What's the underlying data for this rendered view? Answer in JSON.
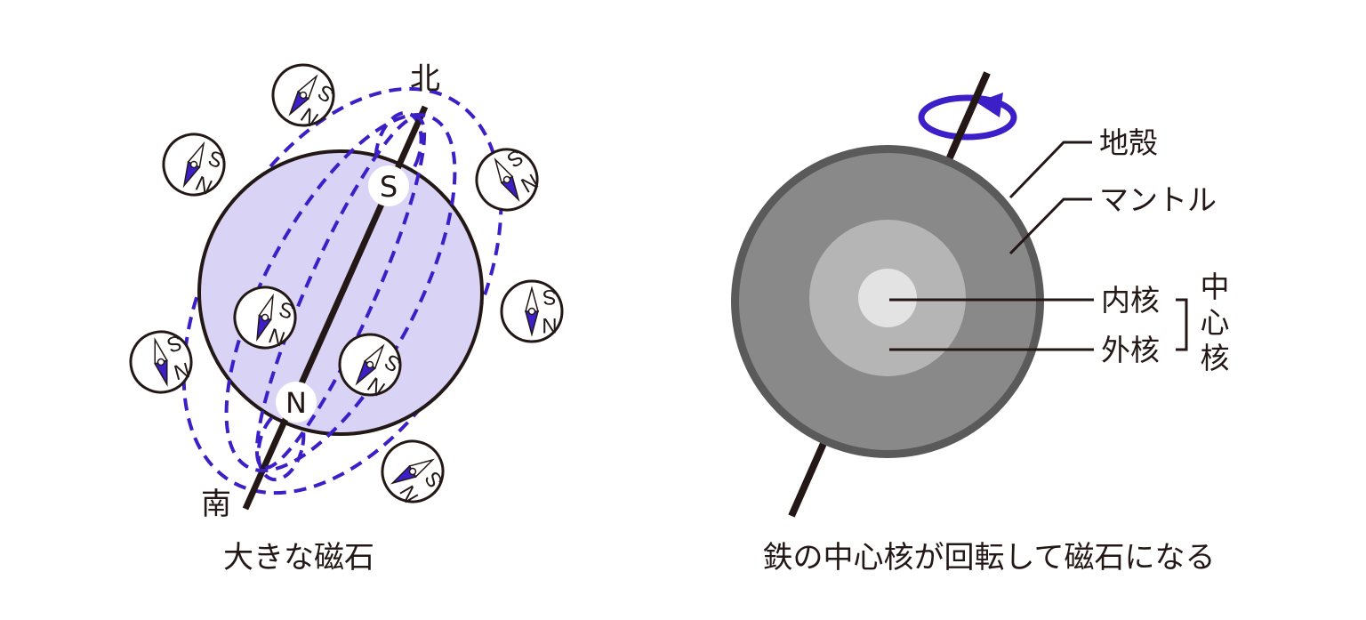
{
  "left_figure": {
    "caption": "大きな磁石",
    "north_label": "北",
    "south_label": "南",
    "pole_top": "S",
    "pole_bottom": "N",
    "compass_n": "N",
    "compass_s": "S"
  },
  "right_figure": {
    "caption": "鉄の中心核が回転して磁石になる",
    "layers": {
      "crust": "地殻",
      "mantle": "マントル",
      "inner_core": "内核",
      "outer_core": "外核"
    },
    "core_group": [
      "中",
      "心",
      "核"
    ]
  },
  "colors": {
    "field_line": "#3d1fc8",
    "earth_fill": "#d9d3f5",
    "outline": "#231815",
    "mantle": "#898989",
    "crust": "#5a5a5a",
    "outer_core": "#b5b5b5",
    "inner_core": "#e3e3e3"
  }
}
